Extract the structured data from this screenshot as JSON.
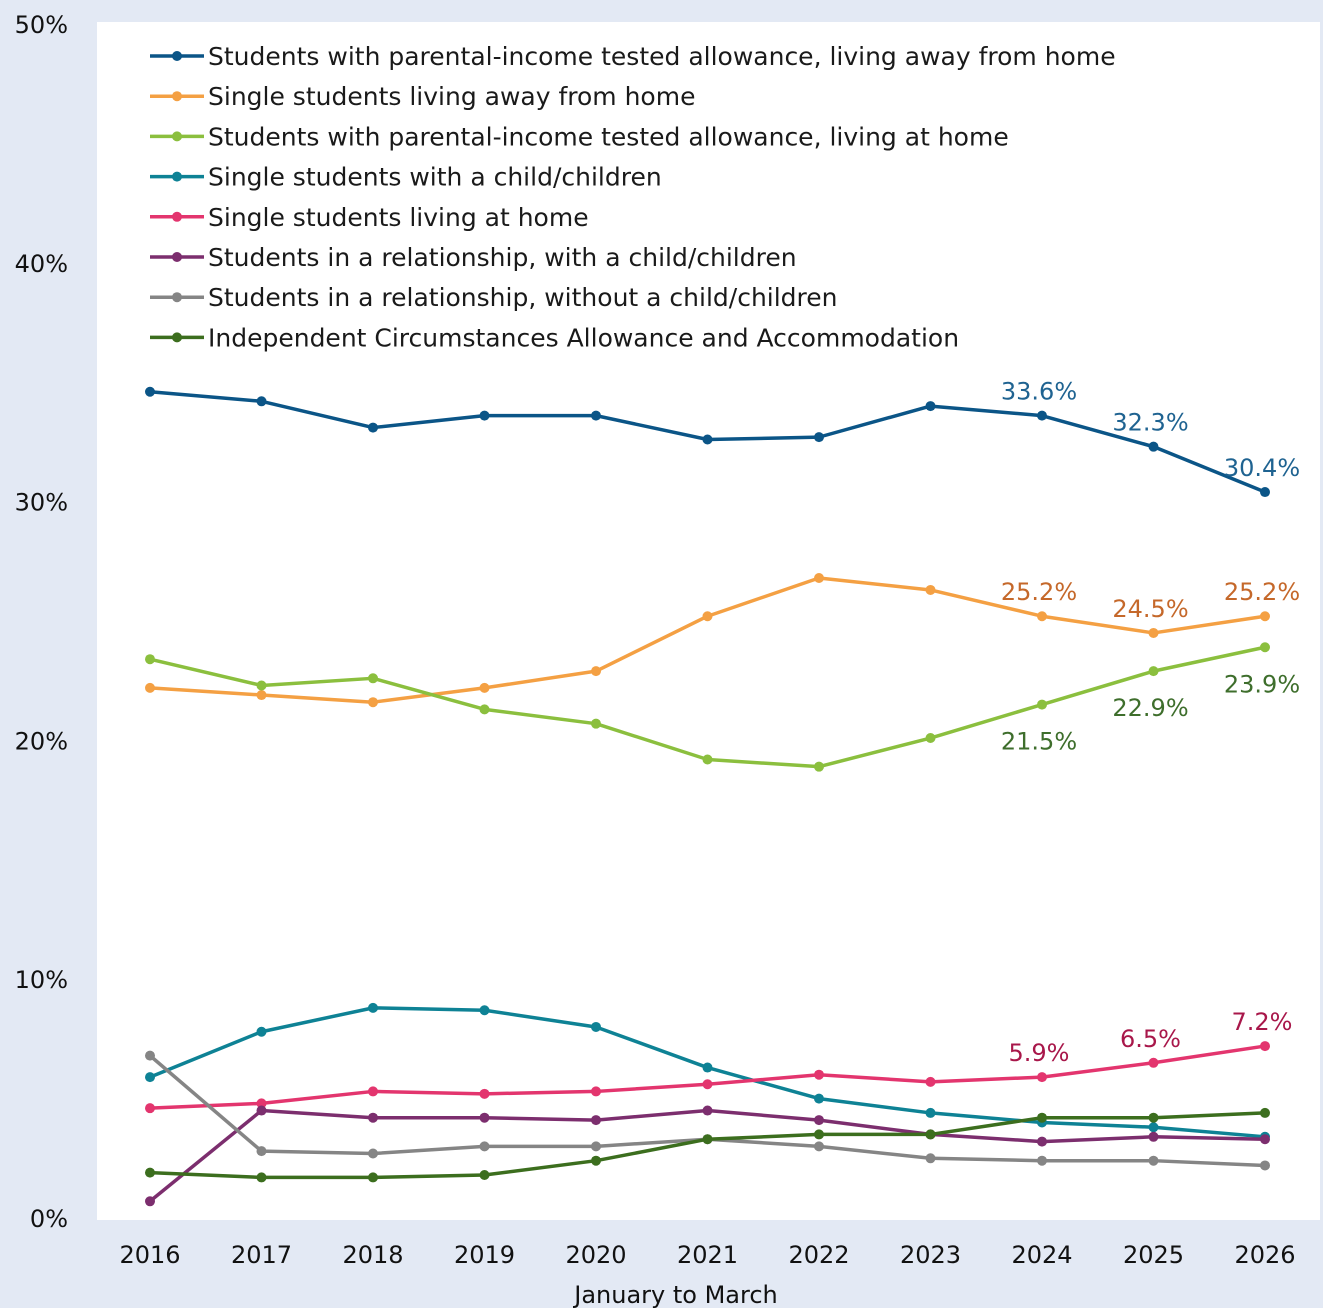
{
  "chart_data": {
    "type": "line",
    "xlabel": "January to March",
    "ylabel": "",
    "ylim": [
      0,
      50
    ],
    "y_ticks": [
      "0%",
      "10%",
      "20%",
      "30%",
      "40%",
      "50%"
    ],
    "categories": [
      "2016",
      "2017",
      "2018",
      "2019",
      "2020",
      "2021",
      "2022",
      "2023",
      "2024",
      "2025",
      "2026"
    ],
    "legend_position": "top-left",
    "grid": false,
    "series": [
      {
        "name": "Students with parental-income tested allowance, living away from home",
        "color": "#0b5587",
        "values": [
          34.6,
          34.2,
          33.1,
          33.6,
          33.6,
          32.6,
          32.7,
          34.0,
          33.6,
          32.3,
          30.4
        ],
        "labels": {
          "8": "33.6%",
          "9": "32.3%",
          "10": "30.4%"
        },
        "label_color": "#1f6391",
        "label_pos": "above"
      },
      {
        "name": "Single students living away from home",
        "color": "#f4a043",
        "values": [
          22.2,
          21.9,
          21.6,
          22.2,
          22.9,
          25.2,
          26.8,
          26.3,
          25.2,
          24.5,
          25.2
        ],
        "labels": {
          "8": "25.2%",
          "9": "24.5%",
          "10": "25.2%"
        },
        "label_color": "#c5682a",
        "label_pos": "above"
      },
      {
        "name": "Students with parental-income tested allowance, living at home",
        "color": "#8bbf3e",
        "values": [
          23.4,
          22.3,
          22.6,
          21.3,
          20.7,
          19.2,
          18.9,
          20.1,
          21.5,
          22.9,
          23.9
        ],
        "labels": {
          "8": "21.5%",
          "9": "22.9%",
          "10": "23.9%"
        },
        "label_color": "#3e6e2c",
        "label_pos": "below"
      },
      {
        "name": "Single students with a child/children",
        "color": "#0e8295",
        "values": [
          5.9,
          7.8,
          8.8,
          8.7,
          8.0,
          6.3,
          5.0,
          4.4,
          4.0,
          3.8,
          3.4
        ],
        "labels": {},
        "label_color": "#0e8295",
        "label_pos": "above"
      },
      {
        "name": "Single students living at home",
        "color": "#e3356e",
        "values": [
          4.6,
          4.8,
          5.3,
          5.2,
          5.3,
          5.6,
          6.0,
          5.7,
          5.9,
          6.5,
          7.2
        ],
        "labels": {
          "8": "5.9%",
          "9": "6.5%",
          "10": "7.2%"
        },
        "label_color": "#a8174a",
        "label_pos": "above"
      },
      {
        "name": "Students in a relationship, with a child/children",
        "color": "#7c2e6e",
        "values": [
          0.7,
          4.5,
          4.2,
          4.2,
          4.1,
          4.5,
          4.1,
          3.5,
          3.2,
          3.4,
          3.3
        ],
        "labels": {},
        "label_color": "#7c2e6e",
        "label_pos": "above"
      },
      {
        "name": "Students in a relationship, without a child/children",
        "color": "#858585",
        "values": [
          6.8,
          2.8,
          2.7,
          3.0,
          3.0,
          3.3,
          3.0,
          2.5,
          2.4,
          2.4,
          2.2
        ],
        "labels": {},
        "label_color": "#858585",
        "label_pos": "above"
      },
      {
        "name": "Independent Circumstances Allowance and Accommodation",
        "color": "#3c6e1e",
        "values": [
          1.9,
          1.7,
          1.7,
          1.8,
          2.4,
          3.3,
          3.5,
          3.5,
          4.2,
          4.2,
          4.4
        ],
        "labels": {},
        "label_color": "#3c6e1e",
        "label_pos": "above"
      }
    ]
  }
}
